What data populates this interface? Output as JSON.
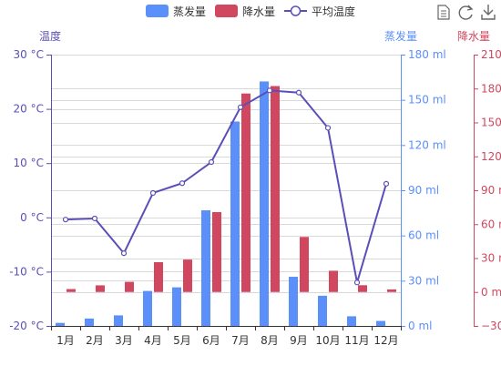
{
  "chart_data": {
    "type": "bar",
    "categories": [
      "1月",
      "2月",
      "3月",
      "4月",
      "5月",
      "6月",
      "7月",
      "8月",
      "9月",
      "10月",
      "11月",
      "12月"
    ],
    "series": [
      {
        "name": "蒸发量",
        "type": "bar",
        "axis": "evaporation",
        "color": "#5B8FF9",
        "values": [
          2.0,
          4.9,
          7.0,
          23.2,
          25.6,
          76.7,
          135.6,
          162.2,
          32.6,
          20.0,
          6.4,
          3.3
        ]
      },
      {
        "name": "降水量",
        "type": "bar",
        "axis": "precipitation",
        "color": "#D1475F",
        "values": [
          2.6,
          5.9,
          9.0,
          26.4,
          28.7,
          70.7,
          175.6,
          182.2,
          48.7,
          18.8,
          6.0,
          2.3
        ]
      },
      {
        "name": "平均温度",
        "type": "line",
        "axis": "temperature",
        "color": "#5A4FB8",
        "values": [
          -0.4,
          -0.2,
          -6.6,
          4.5,
          6.3,
          10.2,
          20.3,
          23.4,
          23.0,
          16.5,
          -12.0,
          6.2
        ]
      }
    ],
    "axes": {
      "temperature": {
        "label": "温度",
        "min": -20,
        "max": 30,
        "ticks": [
          "-20 °C",
          "-10 °C",
          "0 °C",
          "10 °C",
          "20 °C",
          "30 °C"
        ],
        "color": "#5A4FB8"
      },
      "evaporation": {
        "label": "蒸发量",
        "min": 0,
        "max": 180,
        "ticks": [
          "0 ml",
          "30 ml",
          "60 ml",
          "90 ml",
          "120 ml",
          "150 ml",
          "180 ml"
        ],
        "color": "#5B8FF9"
      },
      "precipitation": {
        "label": "降水量",
        "min": -30,
        "max": 210,
        "ticks": [
          "−30",
          "0 m",
          "30 m",
          "60 m",
          "90 m",
          "120",
          "150",
          "180",
          "210"
        ],
        "color": "#D1475F"
      }
    },
    "grid": true,
    "legend_position": "top-center"
  },
  "toolbox": {
    "icons": [
      "data-view-icon",
      "restore-icon",
      "save-image-icon"
    ]
  }
}
